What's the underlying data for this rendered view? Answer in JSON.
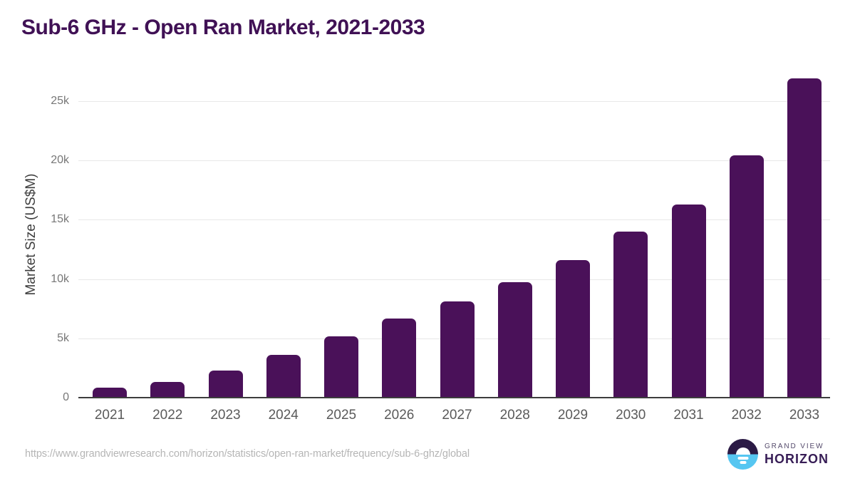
{
  "title": "Sub-6 GHz - Open Ran Market, 2021-2033",
  "footer": {
    "source_url": "https://www.grandviewresearch.com/horizon/statistics/open-ran-market/frequency/sub-6-ghz/global",
    "logo": {
      "line1": "GRAND VIEW",
      "line2": "HORIZON"
    }
  },
  "colors": {
    "bar_color": "#4A1159",
    "title_color": "#401155",
    "grid_color": "#E8E8E8",
    "axis_color": "#3D3D3D",
    "tick_label_color": "#777777",
    "x_label_color": "#5A5A5A",
    "axis_title_color": "#3E3E3E",
    "url_color": "#B5B5B5",
    "logo_dark": "#2B1A45",
    "logo_blue": "#56C6F1",
    "logo_text_top": "#544A6B",
    "logo_text_bottom": "#371D56"
  },
  "chart_data": {
    "type": "bar",
    "title": "Sub-6 GHz - Open Ran Market, 2021-2033",
    "xlabel": "",
    "ylabel": "Market Size (US$M)",
    "categories": [
      "2021",
      "2022",
      "2023",
      "2024",
      "2025",
      "2026",
      "2027",
      "2028",
      "2029",
      "2030",
      "2031",
      "2032",
      "2033"
    ],
    "values": [
      840,
      1320,
      2280,
      3600,
      5160,
      6670,
      8110,
      9730,
      11590,
      13990,
      16280,
      20420,
      26910
    ],
    "ylim": [
      0,
      27500
    ],
    "yticks": [
      {
        "value": 0,
        "label": "0"
      },
      {
        "value": 5000,
        "label": "5k"
      },
      {
        "value": 10000,
        "label": "10k"
      },
      {
        "value": 15000,
        "label": "15k"
      },
      {
        "value": 20000,
        "label": "20k"
      },
      {
        "value": 25000,
        "label": "25k"
      }
    ],
    "grid": "horizontal",
    "legend": false,
    "bar_unit": "US$M"
  }
}
